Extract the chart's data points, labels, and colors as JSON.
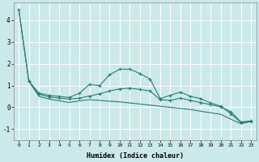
{
  "xlabel": "Humidex (Indice chaleur)",
  "xlim": [
    -0.5,
    23.5
  ],
  "ylim": [
    -1.5,
    4.8
  ],
  "yticks": [
    -1,
    0,
    1,
    2,
    3,
    4
  ],
  "xticks": [
    0,
    1,
    2,
    3,
    4,
    5,
    6,
    7,
    8,
    9,
    10,
    11,
    12,
    13,
    14,
    15,
    16,
    17,
    18,
    19,
    20,
    21,
    22,
    23
  ],
  "bg_color": "#cce9e9",
  "grid_color": "#ffffff",
  "line_color": "#2a7d6f",
  "line1_x": [
    0,
    1,
    2,
    3,
    4,
    5,
    6,
    7,
    8,
    9,
    10,
    11,
    12,
    13,
    14,
    15,
    16,
    17,
    18,
    19,
    20,
    21,
    22,
    23
  ],
  "line1_y": [
    4.5,
    1.2,
    0.65,
    0.55,
    0.5,
    0.45,
    0.65,
    1.05,
    1.0,
    1.5,
    1.75,
    1.75,
    1.55,
    1.3,
    0.4,
    0.55,
    0.7,
    0.5,
    0.4,
    0.2,
    0.05,
    -0.3,
    -0.7,
    -0.65
  ],
  "line2_x": [
    1,
    2,
    3,
    4,
    5,
    6,
    7,
    8,
    9,
    10,
    11,
    12,
    13,
    14,
    15,
    16,
    17,
    18,
    19,
    20,
    21,
    22,
    23
  ],
  "line2_y": [
    1.2,
    0.6,
    0.48,
    0.42,
    0.38,
    0.42,
    0.52,
    0.62,
    0.75,
    0.85,
    0.88,
    0.82,
    0.75,
    0.35,
    0.32,
    0.42,
    0.32,
    0.22,
    0.12,
    0.02,
    -0.2,
    -0.68,
    -0.62
  ],
  "line3_x": [
    0,
    1,
    2,
    3,
    4,
    5,
    6,
    7,
    8,
    9,
    10,
    11,
    12,
    13,
    14,
    15,
    16,
    17,
    18,
    19,
    20,
    21,
    22,
    23
  ],
  "line3_y": [
    4.5,
    1.2,
    0.5,
    0.38,
    0.3,
    0.22,
    0.3,
    0.35,
    0.32,
    0.28,
    0.25,
    0.2,
    0.15,
    0.1,
    0.05,
    0.0,
    -0.05,
    -0.1,
    -0.18,
    -0.25,
    -0.32,
    -0.55,
    -0.75,
    -0.65
  ]
}
